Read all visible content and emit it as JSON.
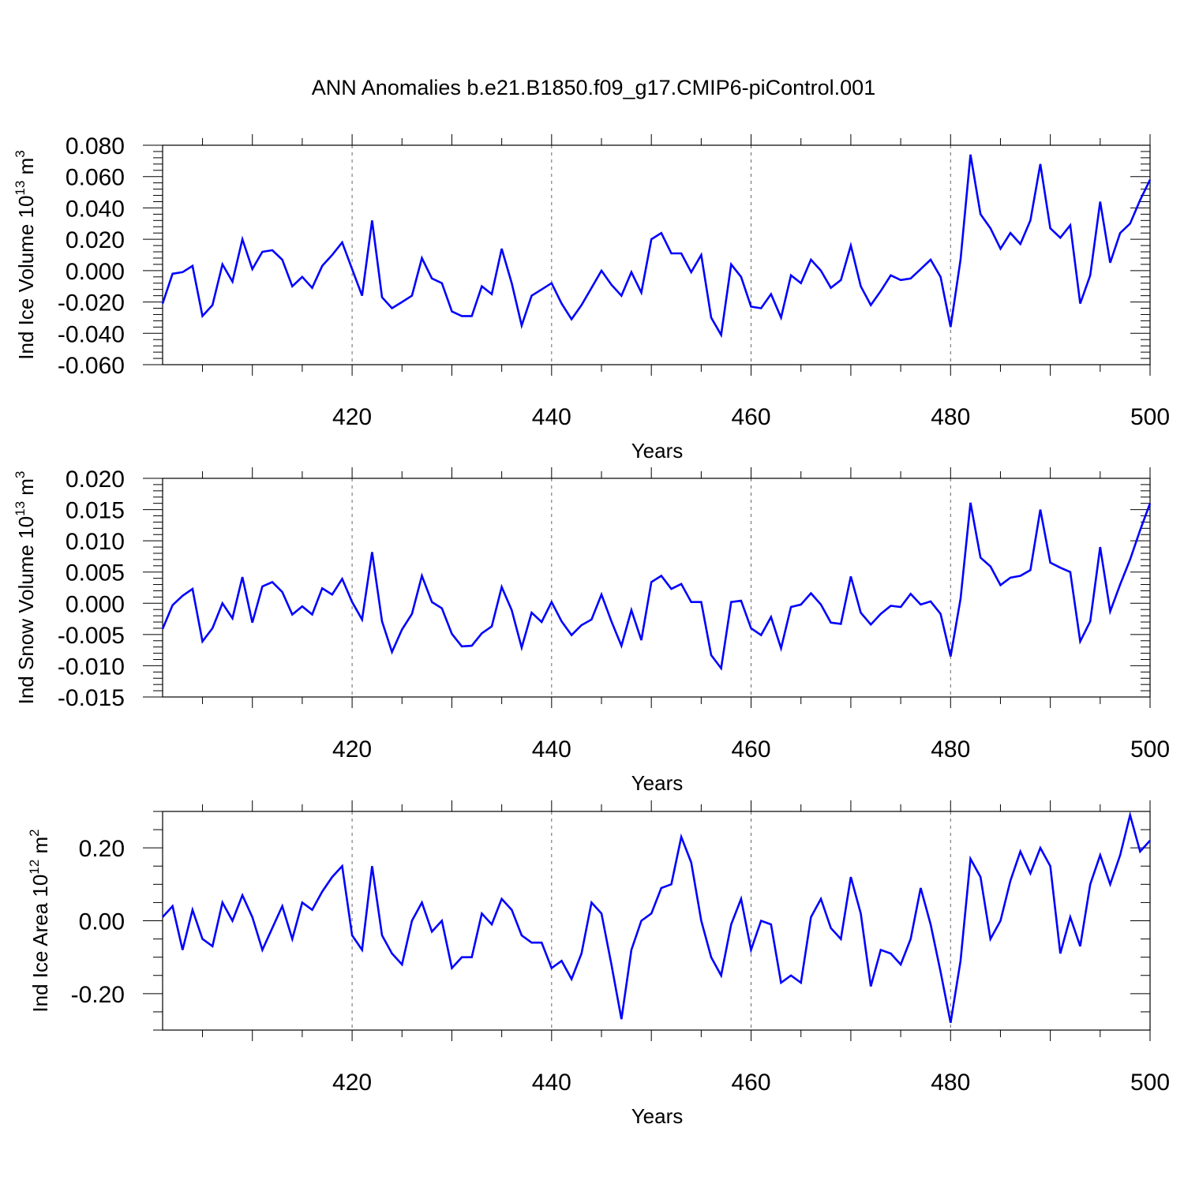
{
  "title": "ANN Anomalies b.e21.B1850.f09_g17.CMIP6-piControl.001",
  "line_color": "#0000ff",
  "grid_color": "#666666",
  "chart_data": [
    {
      "type": "line",
      "ylabel": "Ind Ice Volume 10",
      "ylabel_exp": "13",
      "ylabel_unit": " m",
      "ylabel_unit_exp": "3",
      "xlabel": "Years",
      "xlim": [
        401,
        500
      ],
      "ylim": [
        -0.06,
        0.08
      ],
      "xticks": [
        420,
        440,
        460,
        480,
        500
      ],
      "xtick_labels": [
        "420",
        "440",
        "460",
        "480",
        "500"
      ],
      "yticks": [
        -0.06,
        -0.04,
        -0.02,
        0.0,
        0.02,
        0.04,
        0.06,
        0.08
      ],
      "ytick_labels": [
        "-0.060",
        "-0.040",
        "-0.020",
        "0.000",
        "0.020",
        "0.040",
        "0.060",
        "0.080"
      ],
      "grid_x": true,
      "x_start": 401,
      "values": [
        -0.021,
        -0.002,
        -0.001,
        0.003,
        -0.029,
        -0.022,
        0.004,
        -0.007,
        0.02,
        0.001,
        0.012,
        0.013,
        0.007,
        -0.01,
        -0.004,
        -0.011,
        0.003,
        0.01,
        0.018,
        0.001,
        -0.016,
        0.032,
        -0.017,
        -0.024,
        -0.02,
        -0.016,
        0.008,
        -0.005,
        -0.008,
        -0.026,
        -0.029,
        -0.029,
        -0.01,
        -0.015,
        0.014,
        -0.008,
        -0.035,
        -0.016,
        -0.012,
        -0.008,
        -0.021,
        -0.031,
        -0.022,
        -0.011,
        0.0,
        -0.009,
        -0.016,
        -0.001,
        -0.014,
        0.02,
        0.024,
        0.011,
        0.011,
        -0.001,
        0.01,
        -0.03,
        -0.041,
        0.004,
        -0.004,
        -0.023,
        -0.024,
        -0.015,
        -0.03,
        -0.003,
        -0.008,
        0.007,
        0.0,
        -0.011,
        -0.006,
        0.016,
        -0.01,
        -0.022,
        -0.013,
        -0.003,
        -0.006,
        -0.005,
        0.001,
        0.007,
        -0.004,
        -0.036,
        0.007,
        0.074,
        0.036,
        0.027,
        0.014,
        0.024,
        0.017,
        0.032,
        0.068,
        0.027,
        0.021,
        0.029,
        -0.021,
        -0.003,
        0.044,
        0.005,
        0.024,
        0.03,
        0.045,
        0.058
      ]
    },
    {
      "type": "line",
      "ylabel": "Ind Snow Volume 10",
      "ylabel_exp": "13",
      "ylabel_unit": " m",
      "ylabel_unit_exp": "3",
      "xlabel": "Years",
      "xlim": [
        401,
        500
      ],
      "ylim": [
        -0.015,
        0.02
      ],
      "xticks": [
        420,
        440,
        460,
        480,
        500
      ],
      "xtick_labels": [
        "420",
        "440",
        "460",
        "480",
        "500"
      ],
      "yticks": [
        -0.015,
        -0.01,
        -0.005,
        0.0,
        0.005,
        0.01,
        0.015,
        0.02
      ],
      "ytick_labels": [
        "-0.015",
        "-0.010",
        "-0.005",
        "0.000",
        "0.005",
        "0.010",
        "0.015",
        "0.020"
      ],
      "grid_x": true,
      "x_start": 401,
      "values": [
        -0.0041,
        -0.0003,
        0.0012,
        0.0023,
        -0.0061,
        -0.004,
        0.0,
        -0.0024,
        0.0042,
        -0.0031,
        0.0027,
        0.0034,
        0.0018,
        -0.0018,
        -0.0005,
        -0.0018,
        0.0024,
        0.0014,
        0.0039,
        0.0002,
        -0.0026,
        0.0082,
        -0.0029,
        -0.0078,
        -0.0042,
        -0.0017,
        0.0044,
        0.0002,
        -0.0008,
        -0.0049,
        -0.0069,
        -0.0068,
        -0.0048,
        -0.0037,
        0.0026,
        -0.0011,
        -0.0071,
        -0.0015,
        -0.003,
        0.0002,
        -0.0029,
        -0.0051,
        -0.0035,
        -0.0026,
        0.0014,
        -0.0029,
        -0.0068,
        -0.0011,
        -0.0059,
        0.0034,
        0.0044,
        0.0023,
        0.0031,
        0.0002,
        0.0002,
        -0.0083,
        -0.0104,
        0.0002,
        0.0004,
        -0.004,
        -0.0051,
        -0.0022,
        -0.0072,
        -0.0006,
        -0.0002,
        0.0016,
        -0.0002,
        -0.0031,
        -0.0033,
        0.0043,
        -0.0015,
        -0.0034,
        -0.0017,
        -0.0004,
        -0.0006,
        0.0015,
        -0.0002,
        0.0003,
        -0.0017,
        -0.0085,
        0.0007,
        0.0161,
        0.0073,
        0.0059,
        0.0029,
        0.0041,
        0.0044,
        0.0053,
        0.015,
        0.0065,
        0.0057,
        0.005,
        -0.0061,
        -0.0029,
        0.009,
        -0.0013,
        0.003,
        0.007,
        0.0117,
        0.016
      ]
    },
    {
      "type": "line",
      "ylabel": "Ind Ice Area 10",
      "ylabel_exp": "12",
      "ylabel_unit": " m",
      "ylabel_unit_exp": "2",
      "xlabel": "Years",
      "xlim": [
        401,
        500
      ],
      "ylim": [
        -0.3,
        0.3
      ],
      "xticks": [
        420,
        440,
        460,
        480,
        500
      ],
      "xtick_labels": [
        "420",
        "440",
        "460",
        "480",
        "500"
      ],
      "yticks": [
        -0.2,
        0.0,
        0.2
      ],
      "ytick_labels": [
        "-0.20",
        "0.00",
        "0.20"
      ],
      "yticks_minor": [
        -0.3,
        -0.25,
        -0.15,
        -0.1,
        -0.05,
        0.05,
        0.1,
        0.15,
        0.25,
        0.3
      ],
      "grid_x": true,
      "x_start": 401,
      "values": [
        0.01,
        0.04,
        -0.08,
        0.03,
        -0.05,
        -0.07,
        0.05,
        0.0,
        0.07,
        0.01,
        -0.08,
        -0.02,
        0.04,
        -0.05,
        0.05,
        0.03,
        0.08,
        0.12,
        0.15,
        -0.04,
        -0.08,
        0.15,
        -0.04,
        -0.09,
        -0.12,
        0.0,
        0.05,
        -0.03,
        0.0,
        -0.13,
        -0.1,
        -0.1,
        0.02,
        -0.01,
        0.06,
        0.03,
        -0.04,
        -0.06,
        -0.06,
        -0.13,
        -0.11,
        -0.16,
        -0.09,
        0.05,
        0.02,
        -0.12,
        -0.27,
        -0.08,
        0.0,
        0.02,
        0.09,
        0.1,
        0.23,
        0.16,
        0.0,
        -0.1,
        -0.15,
        -0.01,
        0.06,
        -0.08,
        0.0,
        -0.01,
        -0.17,
        -0.15,
        -0.17,
        0.01,
        0.06,
        -0.02,
        -0.05,
        0.12,
        0.02,
        -0.18,
        -0.08,
        -0.09,
        -0.12,
        -0.05,
        0.09,
        -0.01,
        -0.14,
        -0.28,
        -0.11,
        0.17,
        0.12,
        -0.05,
        0.0,
        0.11,
        0.19,
        0.13,
        0.2,
        0.15,
        -0.09,
        0.01,
        -0.07,
        0.1,
        0.18,
        0.1,
        0.18,
        0.29,
        0.19,
        0.22
      ]
    }
  ]
}
